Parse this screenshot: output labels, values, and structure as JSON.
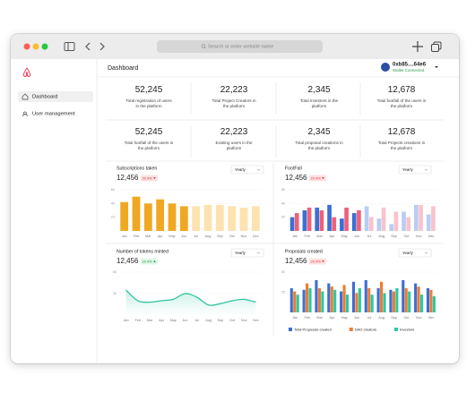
{
  "browser": {
    "address_placeholder": "Search or enter website name"
  },
  "sidebar": {
    "items": [
      "Dashboard",
      "User management"
    ],
    "active": 0
  },
  "header": {
    "title": "Dashboard",
    "wallet": {
      "address": "0xb85....64e6",
      "status": "Wallet Connected"
    }
  },
  "stats": [
    {
      "value": "52,245",
      "label": "Total registration of users in the platform"
    },
    {
      "value": "22,223",
      "label": "Total Project Creators in the platform"
    },
    {
      "value": "2,345",
      "label": "Total Investors in the platform"
    },
    {
      "value": "12,678",
      "label": "Total footfall of the users in the platform"
    },
    {
      "value": "52,245",
      "label": "Total footfall of the users in the platform"
    },
    {
      "value": "22,223",
      "label": "Existing users in the platform"
    },
    {
      "value": "2,345",
      "label": "Total proposal creations in the platform"
    },
    {
      "value": "12,678",
      "label": "Total Projects creations in the platform"
    }
  ],
  "charts": [
    {
      "title": "Subscriptions taken",
      "total": "12,456",
      "change": "20.4%",
      "trend": "down",
      "period": "Yearly",
      "chart_data": {
        "type": "bar",
        "categories": [
          "Jan",
          "Feb",
          "Mar",
          "Apr",
          "May",
          "Jun",
          "Jul",
          "Aug",
          "Sep",
          "Oct",
          "Nov",
          "Dec"
        ],
        "values": [
          42,
          50,
          40,
          46,
          40,
          36,
          36,
          38,
          38,
          36,
          34,
          36
        ],
        "colors": [
          "#f0a823",
          "#f0a823",
          "#f0a823",
          "#f0a823",
          "#f0a823",
          "#f0a823",
          "#fde3b0",
          "#fde3b0",
          "#fde3b0",
          "#fde3b0",
          "#fde3b0",
          "#fde3b0"
        ],
        "ylim": [
          0,
          60
        ],
        "yticks": [
          20,
          40,
          60
        ]
      }
    },
    {
      "title": "FootFall",
      "total": "12,456",
      "change": "20.4%",
      "trend": "down",
      "period": "Yearly",
      "chart_data": {
        "type": "bar",
        "categories": [
          "Jan",
          "Feb",
          "Mar",
          "Apr",
          "May",
          "Jun",
          "Jul",
          "Aug",
          "Sep",
          "Oct",
          "Nov",
          "Dec"
        ],
        "series": [
          {
            "values": [
              20,
              30,
              34,
              38,
              18,
              26,
              36,
              18,
              10,
              28,
              38,
              24
            ],
            "colors": [
              "#3b6fd4",
              "#3b6fd4",
              "#3b6fd4",
              "#3b6fd4",
              "#3b6fd4",
              "#3b6fd4",
              "#b9cdf2",
              "#b9cdf2",
              "#b9cdf2",
              "#b9cdf2",
              "#b9cdf2",
              "#b9cdf2"
            ]
          },
          {
            "values": [
              26,
              34,
              30,
              20,
              34,
              30,
              20,
              34,
              28,
              20,
              38,
              36
            ],
            "colors": [
              "#f0607a",
              "#f0607a",
              "#f0607a",
              "#f0607a",
              "#f0607a",
              "#f0607a",
              "#f8c3cc",
              "#f8c3cc",
              "#f8c3cc",
              "#f8c3cc",
              "#f8c3cc",
              "#f8c3cc"
            ]
          }
        ],
        "ylim": [
          0,
          60
        ],
        "yticks": [
          20,
          40,
          60
        ]
      }
    },
    {
      "title": "Number of tokens minted",
      "total": "12,456",
      "change": "20.4%",
      "trend": "up",
      "period": "Yearly",
      "chart_data": {
        "type": "line",
        "categories": [
          "Jan",
          "Feb",
          "Mar",
          "Apr",
          "May",
          "Jun",
          "Jul",
          "Aug",
          "Sep",
          "Oct",
          "Nov",
          "Dec"
        ],
        "values": [
          35,
          20,
          18,
          20,
          22,
          30,
          25,
          14,
          16,
          20,
          22,
          18
        ],
        "color": "#2ec4a0",
        "ylim": [
          0,
          60
        ],
        "yticks": [
          30,
          60
        ]
      }
    },
    {
      "title": "Proposals created",
      "total": "12,456",
      "change": "20.4%",
      "trend": "down",
      "period": "Yearly",
      "chart_data": {
        "type": "bar",
        "categories": [
          "Jan",
          "Feb",
          "Mar",
          "Apr",
          "May",
          "Jun",
          "Jul",
          "Aug",
          "Sep",
          "Oct",
          "Nov",
          "Dec"
        ],
        "series": [
          {
            "name": "Total Proposals created",
            "color": "#3b6fd4",
            "values": [
              30,
              28,
              40,
              36,
              26,
              38,
              40,
              30,
              28,
              40,
              36,
              30
            ]
          },
          {
            "name": "DAO creators",
            "color": "#f07b2e",
            "values": [
              26,
              36,
              30,
              32,
              34,
              24,
              30,
              38,
              26,
              30,
              32,
              28
            ]
          },
          {
            "name": "Investors",
            "color": "#27c9a5",
            "values": [
              22,
              30,
              26,
              28,
              22,
              30,
              22,
              24,
              30,
              26,
              22,
              20
            ]
          }
        ],
        "ylim": [
          0,
          50
        ],
        "yticks": [
          25,
          50
        ],
        "legend": "bottom"
      }
    }
  ]
}
